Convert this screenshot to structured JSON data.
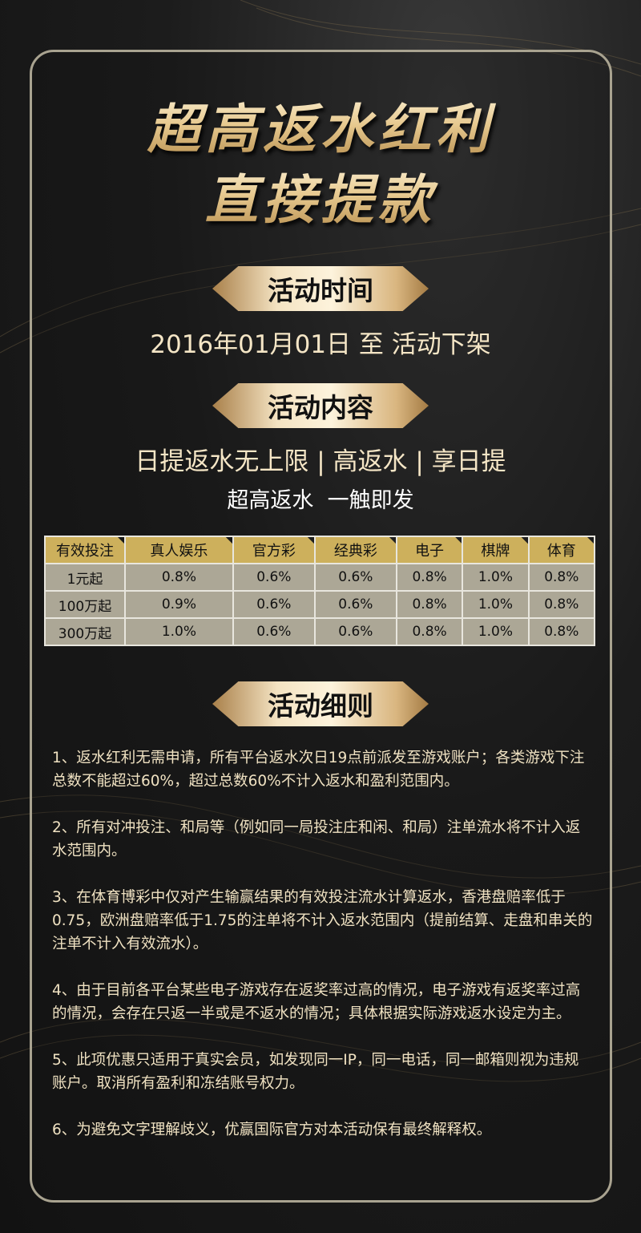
{
  "title": {
    "line1": "超高返水红利",
    "line2": "直接提款"
  },
  "sections": {
    "time": "活动时间",
    "content": "活动内容",
    "rules": "活动细则"
  },
  "time_text": "2016年01月01日 至 活动下架",
  "content_line1": "日提返水无上限 | 高返水 | 享日提",
  "content_line2": "超高返水  一触即发",
  "table": {
    "headers": [
      "有效投注",
      "真人娱乐",
      "官方彩",
      "经典彩",
      "电子",
      "棋牌",
      "体育"
    ],
    "rows": [
      [
        "1元起",
        "0.8%",
        "0.6%",
        "0.6%",
        "0.8%",
        "1.0%",
        "0.8%"
      ],
      [
        "100万起",
        "0.9%",
        "0.6%",
        "0.6%",
        "0.8%",
        "1.0%",
        "0.8%"
      ],
      [
        "300万起",
        "1.0%",
        "0.6%",
        "0.6%",
        "0.8%",
        "1.0%",
        "0.8%"
      ]
    ]
  },
  "rules": [
    "1、返水红利无需申请，所有平台返水次日19点前派发至游戏账户；各类游戏下注总数不能超过60%，超过总数60%不计入返水和盈利范围内。",
    "2、所有对冲投注、和局等（例如同一局投注庄和闲、和局）注单流水将不计入返水范围内。",
    "3、在体育博彩中仅对产生输赢结果的有效投注流水计算返水，香港盘赔率低于0.75，欧洲盘赔率低于1.75的注单将不计入返水范围内（提前结算、走盘和串关的注单不计入有效流水）。",
    "4、由于目前各平台某些电子游戏存在返奖率过高的情况，电子游戏有返奖率过高的情况，会存在只返一半或是不返水的情况；具体根据实际游戏返水设定为主。",
    "5、此项优惠只适用于真实会员，如发现同一IP，同一电话，同一邮箱则视为违规账户。取消所有盈利和冻结账号权力。",
    "6、为避免文字理解歧义，优赢国际官方对本活动保有最终解释权。"
  ],
  "colors": {
    "gold": "#cdb05c",
    "cell": "#aca796",
    "text": "#f0e2c2",
    "frame": "#a9a390"
  }
}
